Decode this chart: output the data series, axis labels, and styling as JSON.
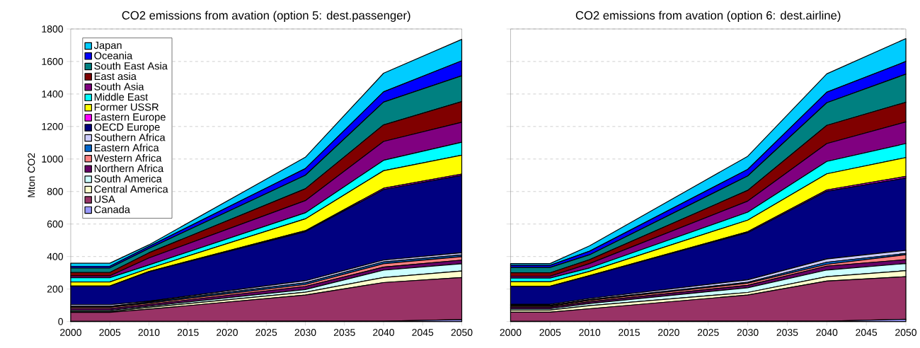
{
  "chart_data": [
    {
      "type": "area",
      "stacked": true,
      "title": "CO2 emissions from avation (option 5: dest.passenger)",
      "ylabel": "Mton CO2",
      "x": [
        2000,
        2005,
        2010,
        2030,
        2040,
        2050
      ],
      "xlim": [
        2000,
        2050
      ],
      "xticks": [
        2000,
        2005,
        2010,
        2015,
        2020,
        2025,
        2030,
        2035,
        2040,
        2045,
        2050
      ],
      "ylim": [
        0,
        1800
      ],
      "yticks": [
        0,
        200,
        400,
        600,
        800,
        1000,
        1200,
        1400,
        1600,
        1800
      ],
      "grid": "y",
      "legend": "top left",
      "series": [
        {
          "name": "Canada",
          "color": "#9999ff",
          "values": [
            1,
            1,
            1,
            2,
            2,
            12
          ]
        },
        {
          "name": "USA",
          "color": "#993366",
          "values": [
            56,
            56,
            75,
            161,
            238,
            259
          ]
        },
        {
          "name": "Central America",
          "color": "#ffffcc",
          "values": [
            5,
            5,
            11,
            18,
            31,
            40
          ]
        },
        {
          "name": "South America",
          "color": "#ccffff",
          "values": [
            8,
            8,
            8,
            16,
            45,
            45
          ]
        },
        {
          "name": "Northern Africa",
          "color": "#660066",
          "values": [
            10,
            10,
            10,
            19,
            19,
            22
          ]
        },
        {
          "name": "Western Africa",
          "color": "#ff8080",
          "values": [
            8,
            8,
            8,
            12,
            21,
            21
          ]
        },
        {
          "name": "Eastern Africa",
          "color": "#0066cc",
          "values": [
            6,
            6,
            7,
            10,
            11,
            11
          ]
        },
        {
          "name": "Southern Africa",
          "color": "#ccccff",
          "values": [
            10,
            10,
            5,
            13,
            11,
            13
          ]
        },
        {
          "name": "OECD Europe",
          "color": "#000080",
          "values": [
            113,
            113,
            181,
            302,
            434,
            477
          ]
        },
        {
          "name": "Eastern Europe",
          "color": "#ff00ff",
          "values": [
            2,
            2,
            2,
            6,
            8,
            8
          ]
        },
        {
          "name": "Former USSR",
          "color": "#ffff00",
          "values": [
            25,
            25,
            19,
            73,
            108,
            116
          ]
        },
        {
          "name": "Middle East",
          "color": "#00ffff",
          "values": [
            26,
            26,
            21,
            37,
            64,
            79
          ]
        },
        {
          "name": "South Asia",
          "color": "#800080",
          "values": [
            11,
            11,
            43,
            75,
            116,
            123
          ]
        },
        {
          "name": "East asia",
          "color": "#800000",
          "values": [
            21,
            21,
            32,
            73,
            102,
            127
          ]
        },
        {
          "name": "South East Asia",
          "color": "#008080",
          "values": [
            28,
            28,
            27,
            83,
            140,
            159
          ]
        },
        {
          "name": "Oceania",
          "color": "#0000ff",
          "values": [
            10,
            10,
            12,
            41,
            63,
            92
          ]
        },
        {
          "name": "Japan",
          "color": "#00ccff",
          "values": [
            19,
            19,
            10,
            70,
            115,
            132
          ]
        }
      ]
    },
    {
      "type": "area",
      "stacked": true,
      "title": "CO2 emissions from avation (option 6: dest.airline)",
      "x": [
        2000,
        2005,
        2010,
        2030,
        2040,
        2050
      ],
      "xlim": [
        2000,
        2050
      ],
      "xticks": [
        2000,
        2005,
        2010,
        2015,
        2020,
        2025,
        2030,
        2035,
        2040,
        2045,
        2050
      ],
      "ylim": [
        0,
        1800
      ],
      "yticks": [
        0,
        200,
        400,
        600,
        800,
        1000,
        1200,
        1400,
        1600,
        1800
      ],
      "grid": "y",
      "tick_labels": "x",
      "series": [
        {
          "color": "#9999ff",
          "values": [
            1,
            1,
            1,
            2,
            2,
            14
          ]
        },
        {
          "color": "#993366",
          "values": [
            57,
            57,
            78,
            161,
            247,
            262
          ]
        },
        {
          "color": "#ffffcc",
          "values": [
            13,
            13,
            19,
            16,
            27,
            37
          ]
        },
        {
          "color": "#ccffff",
          "values": [
            8,
            8,
            13,
            29,
            41,
            44
          ]
        },
        {
          "color": "#660066",
          "values": [
            9,
            9,
            11,
            15,
            24,
            24
          ]
        },
        {
          "color": "#ff8080",
          "values": [
            7,
            7,
            8,
            13,
            11,
            30
          ]
        },
        {
          "color": "#0066cc",
          "values": [
            5,
            5,
            5,
            6,
            13,
            8
          ]
        },
        {
          "color": "#ccccff",
          "values": [
            6,
            6,
            7,
            15,
            20,
            19
          ]
        },
        {
          "color": "#000080",
          "values": [
            110,
            110,
            139,
            290,
            417,
            445
          ]
        },
        {
          "color": "#ff00ff",
          "values": [
            2,
            2,
            2,
            6,
            8,
            10
          ]
        },
        {
          "color": "#ffff00",
          "values": [
            27,
            27,
            26,
            71,
            99,
            116
          ]
        },
        {
          "color": "#00ffff",
          "values": [
            23,
            23,
            21,
            49,
            76,
            86
          ]
        },
        {
          "color": "#800080",
          "values": [
            11,
            11,
            27,
            68,
            110,
            133
          ]
        },
        {
          "color": "#800000",
          "values": [
            21,
            21,
            24,
            66,
            112,
            121
          ]
        },
        {
          "color": "#008080",
          "values": [
            33,
            33,
            30,
            89,
            139,
            173
          ]
        },
        {
          "color": "#0000ff",
          "values": [
            13,
            13,
            22,
            40,
            65,
            78
          ]
        },
        {
          "color": "#00ccff",
          "values": [
            11,
            11,
            33,
            81,
            113,
            141
          ]
        }
      ]
    }
  ]
}
